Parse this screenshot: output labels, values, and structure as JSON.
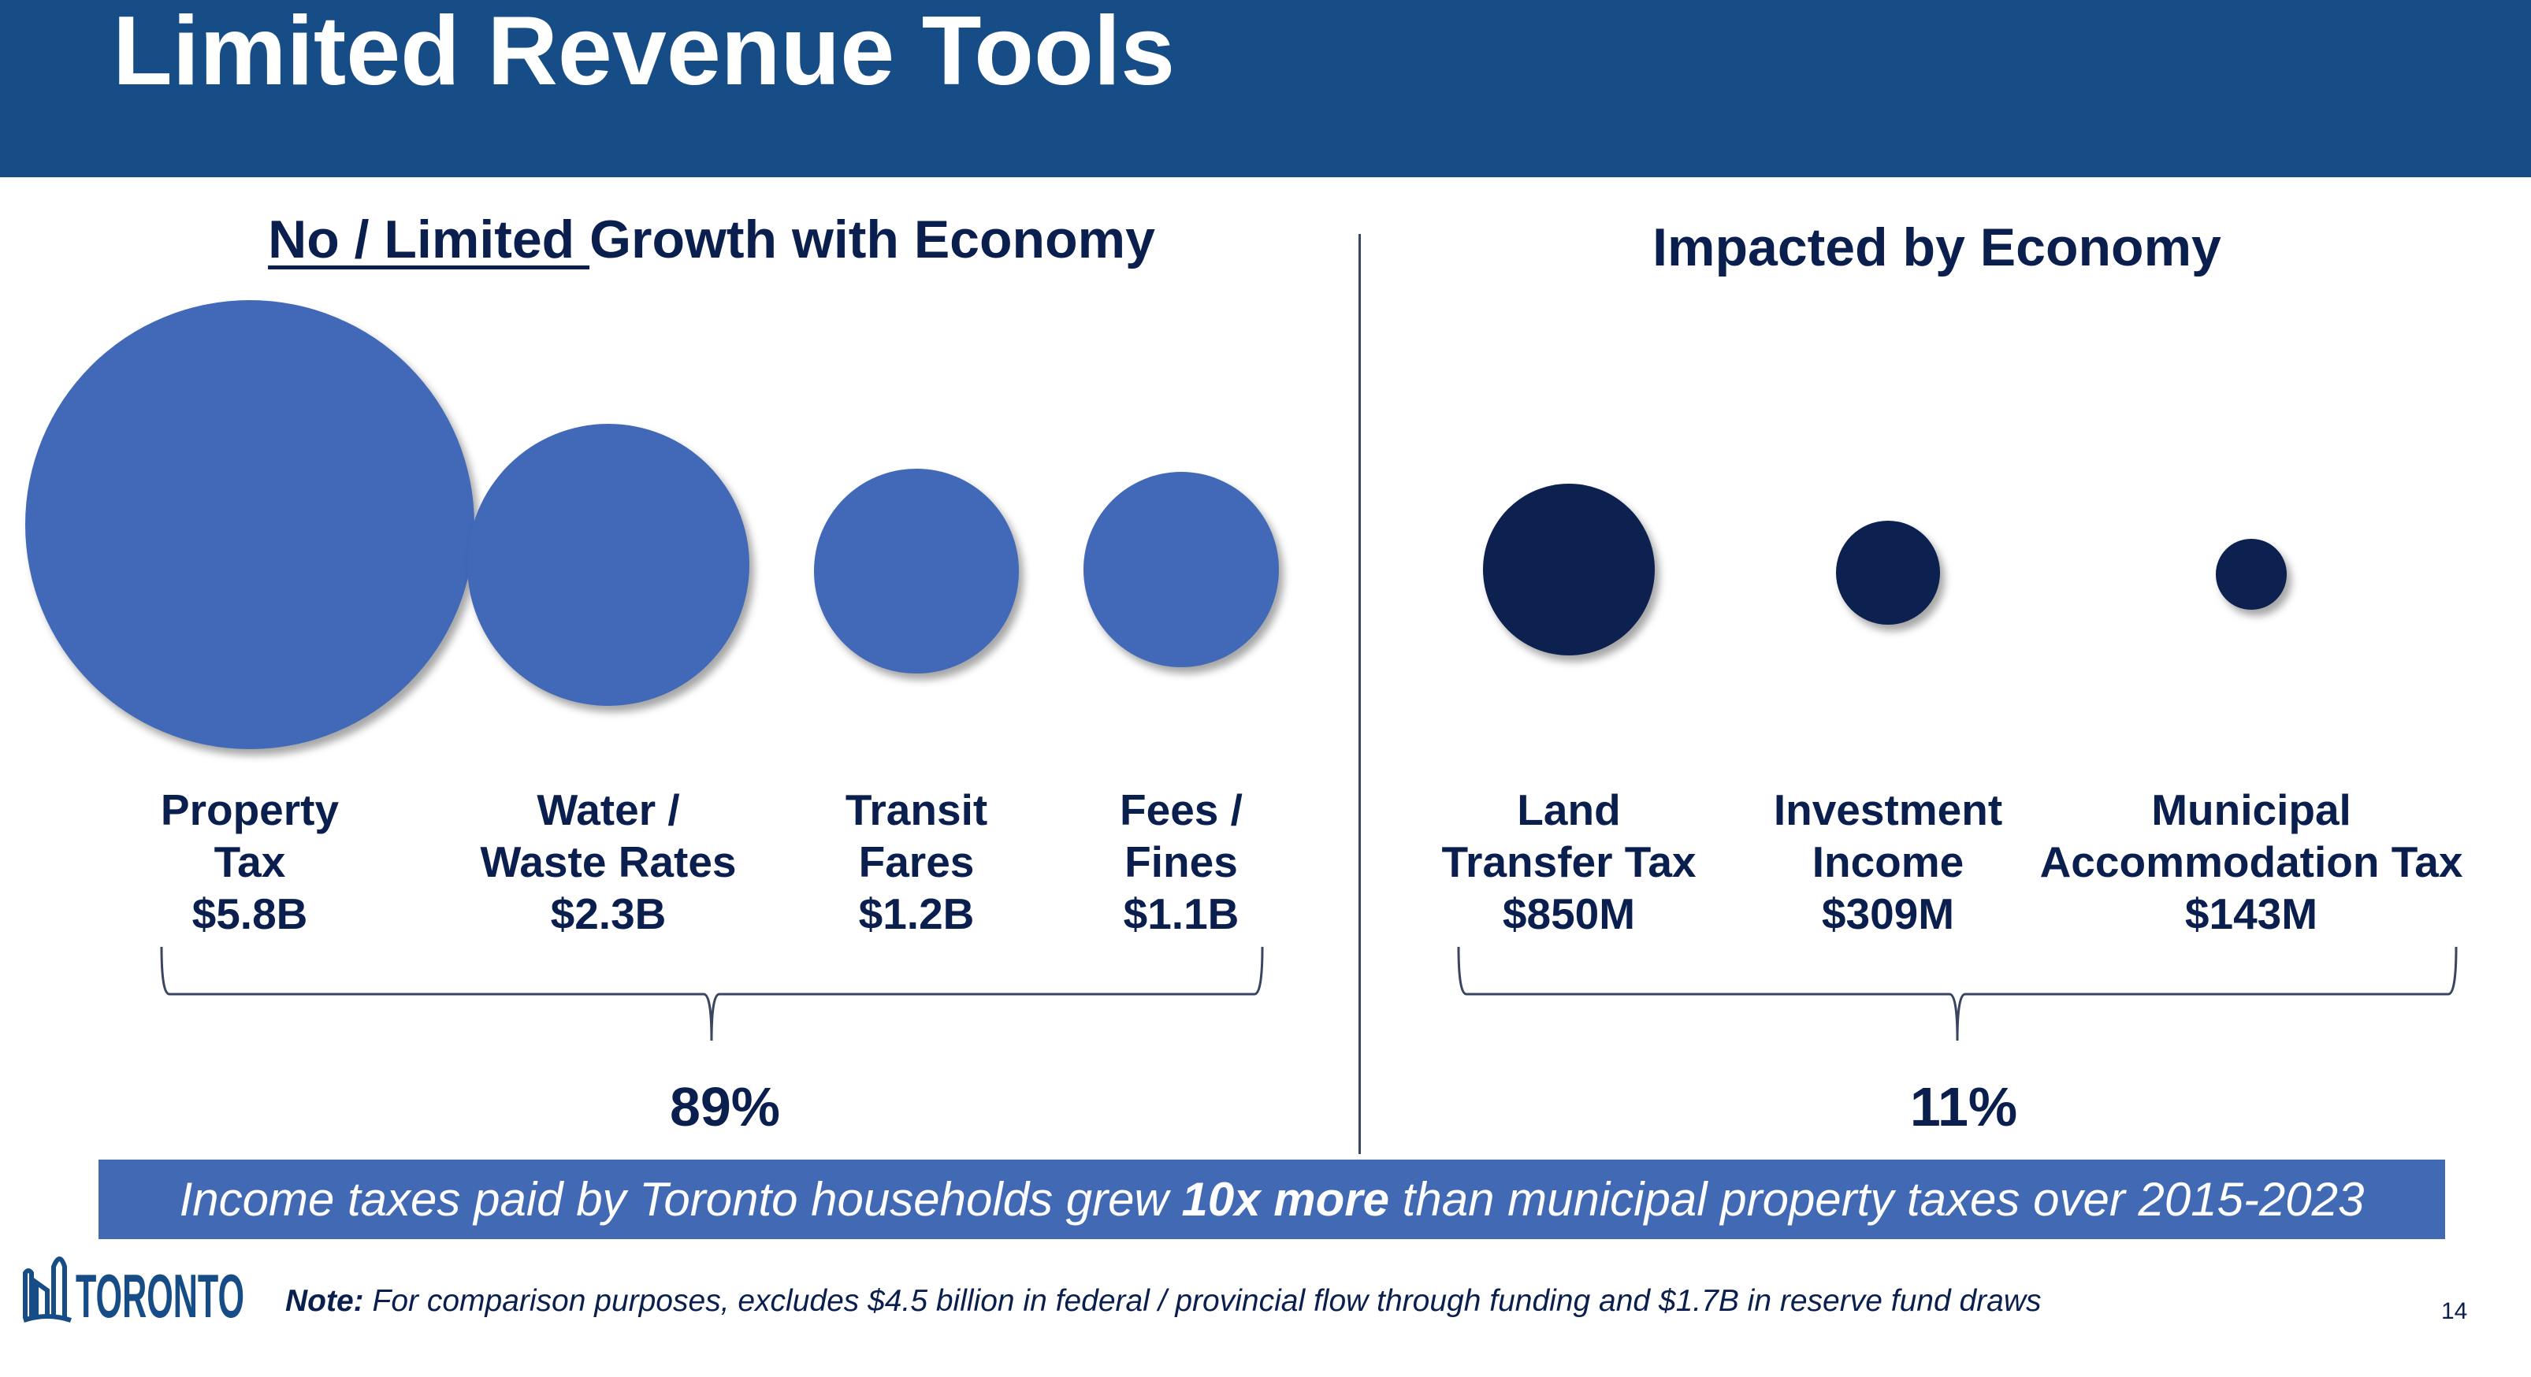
{
  "title": "Limited Revenue Tools",
  "left_section": {
    "heading_underlined": "No / Limited ",
    "heading_rest": "Growth with Economy",
    "share": "89%",
    "items": [
      {
        "lines": [
          "Property",
          "Tax",
          "$5.8B"
        ],
        "value_millions": 5800
      },
      {
        "lines": [
          "Water /",
          "Waste Rates",
          "$2.3B"
        ],
        "value_millions": 2300
      },
      {
        "lines": [
          "Transit",
          "Fares",
          "$1.2B"
        ],
        "value_millions": 1200
      },
      {
        "lines": [
          "Fees /",
          "Fines",
          "$1.1B"
        ],
        "value_millions": 1100
      }
    ]
  },
  "right_section": {
    "heading": "Impacted by Economy",
    "share": "11%",
    "items": [
      {
        "lines": [
          "Land",
          "Transfer Tax",
          "$850M"
        ],
        "value_millions": 850
      },
      {
        "lines": [
          "Investment",
          "Income",
          "$309M"
        ],
        "value_millions": 309
      },
      {
        "lines": [
          "Municipal",
          "Accommodation Tax",
          "$143M"
        ],
        "value_millions": 143
      }
    ]
  },
  "banner": {
    "before": "Income taxes paid by Toronto households grew ",
    "bold": "10x more",
    "after": " than municipal property taxes over 2015-2023"
  },
  "note": {
    "label": "Note:",
    "text": " For comparison purposes, excludes $4.5 billion in federal / provincial flow through funding and $1.7B in reserve fund draws"
  },
  "logo": "TORONTO",
  "page_number": "14",
  "colors": {
    "header": "#174d86",
    "left_circles": "#4169b8",
    "right_circles": "#0d2150",
    "banner": "#4169b4",
    "text": "#0b1f4f"
  }
}
